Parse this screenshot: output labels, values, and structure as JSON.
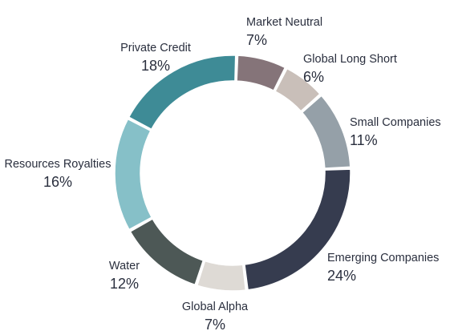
{
  "chart_data": {
    "type": "pie",
    "donut": true,
    "legend": "none",
    "slices": [
      {
        "label": "Market Neutral",
        "value": 7,
        "display": "7%",
        "color": "#857479"
      },
      {
        "label": "Global Long Short",
        "value": 6,
        "display": "6%",
        "color": "#c9bfb9"
      },
      {
        "label": "Small Companies",
        "value": 11,
        "display": "11%",
        "color": "#95a0a8"
      },
      {
        "label": "Emerging Companies",
        "value": 24,
        "display": "24%",
        "color": "#363c4f"
      },
      {
        "label": "Global Alpha",
        "value": 7,
        "display": "7%",
        "color": "#dedad5"
      },
      {
        "label": "Water",
        "value": 12,
        "display": "12%",
        "color": "#4d5856"
      },
      {
        "label": "Resources Royalties",
        "value": 16,
        "display": "16%",
        "color": "#86c0c8"
      },
      {
        "label": "Private Credit",
        "value": 18,
        "display": "18%",
        "color": "#3e8b96"
      }
    ]
  }
}
